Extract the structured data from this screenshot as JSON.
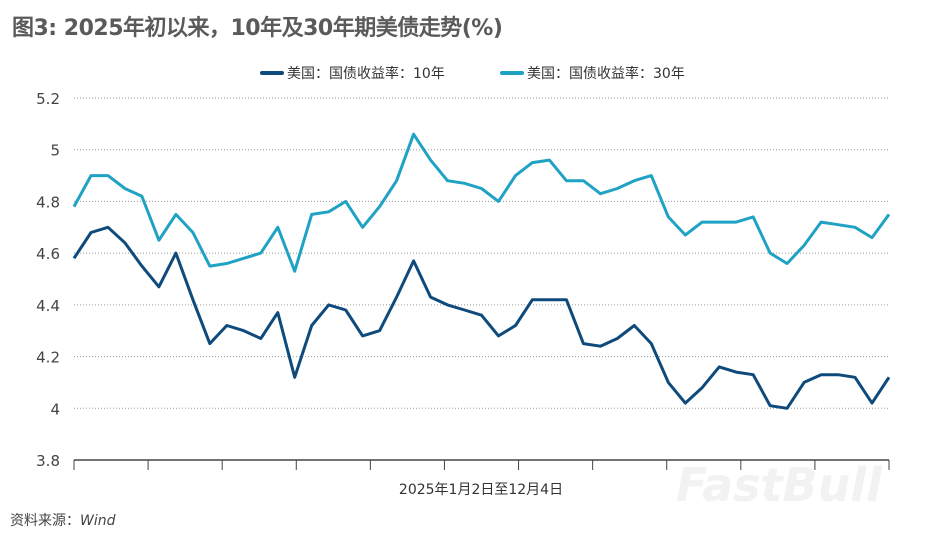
{
  "title": "图3: 2025年初以来，10年及30年期美债走势(%)",
  "source_label": "资料来源：",
  "source_value": "Wind",
  "watermark": "FastBull",
  "chart_data": {
    "type": "line",
    "title": "图3: 2025年初以来，10年及30年期美债走势(%)",
    "xlabel": "2025年1月2日至12月4日",
    "ylabel": "",
    "ylim": [
      3.8,
      5.2
    ],
    "yticks": [
      "3.8",
      "4",
      "4.2",
      "4.4",
      "4.6",
      "4.8",
      "5",
      "5.2"
    ],
    "xlim": [
      "2025-01-02",
      "2025-12-04"
    ],
    "grid": true,
    "legend": "top-center",
    "x": [
      "2025-01-02",
      "2025-01-09",
      "2025-01-16",
      "2025-01-23",
      "2025-01-30",
      "2025-02-06",
      "2025-02-13",
      "2025-02-20",
      "2025-02-27",
      "2025-03-06",
      "2025-03-13",
      "2025-03-20",
      "2025-03-27",
      "2025-04-03",
      "2025-04-10",
      "2025-04-17",
      "2025-04-24",
      "2025-05-01",
      "2025-05-08",
      "2025-05-15",
      "2025-05-22",
      "2025-05-29",
      "2025-06-05",
      "2025-06-12",
      "2025-06-19",
      "2025-06-26",
      "2025-07-03",
      "2025-07-10",
      "2025-07-17",
      "2025-07-24",
      "2025-07-31",
      "2025-08-07",
      "2025-08-14",
      "2025-08-21",
      "2025-08-28",
      "2025-09-04",
      "2025-09-11",
      "2025-09-18",
      "2025-09-25",
      "2025-10-02",
      "2025-10-09",
      "2025-10-16",
      "2025-10-23",
      "2025-10-30",
      "2025-11-06",
      "2025-11-13",
      "2025-11-20",
      "2025-11-27",
      "2025-12-04"
    ],
    "series": [
      {
        "name": "美国：国债收益率：10年",
        "color": "#0e4a7b",
        "values": [
          4.58,
          4.68,
          4.7,
          4.64,
          4.55,
          4.47,
          4.6,
          4.42,
          4.25,
          4.32,
          4.3,
          4.27,
          4.37,
          4.12,
          4.32,
          4.4,
          4.38,
          4.28,
          4.3,
          4.43,
          4.57,
          4.43,
          4.4,
          4.38,
          4.36,
          4.28,
          4.32,
          4.42,
          4.42,
          4.42,
          4.25,
          4.24,
          4.27,
          4.32,
          4.25,
          4.1,
          4.02,
          4.08,
          4.16,
          4.14,
          4.13,
          4.01,
          4.0,
          4.1,
          4.13,
          4.13,
          4.12,
          4.02,
          4.12
        ]
      },
      {
        "name": "美国：国债收益率：30年",
        "color": "#1fa2c3",
        "values": [
          4.78,
          4.9,
          4.9,
          4.85,
          4.82,
          4.65,
          4.75,
          4.68,
          4.55,
          4.56,
          4.58,
          4.6,
          4.7,
          4.53,
          4.75,
          4.76,
          4.8,
          4.7,
          4.78,
          4.88,
          5.06,
          4.96,
          4.88,
          4.87,
          4.85,
          4.8,
          4.9,
          4.95,
          4.96,
          4.88,
          4.88,
          4.83,
          4.85,
          4.88,
          4.9,
          4.74,
          4.67,
          4.72,
          4.72,
          4.72,
          4.74,
          4.6,
          4.56,
          4.63,
          4.72,
          4.71,
          4.7,
          4.66,
          4.75
        ]
      }
    ]
  }
}
